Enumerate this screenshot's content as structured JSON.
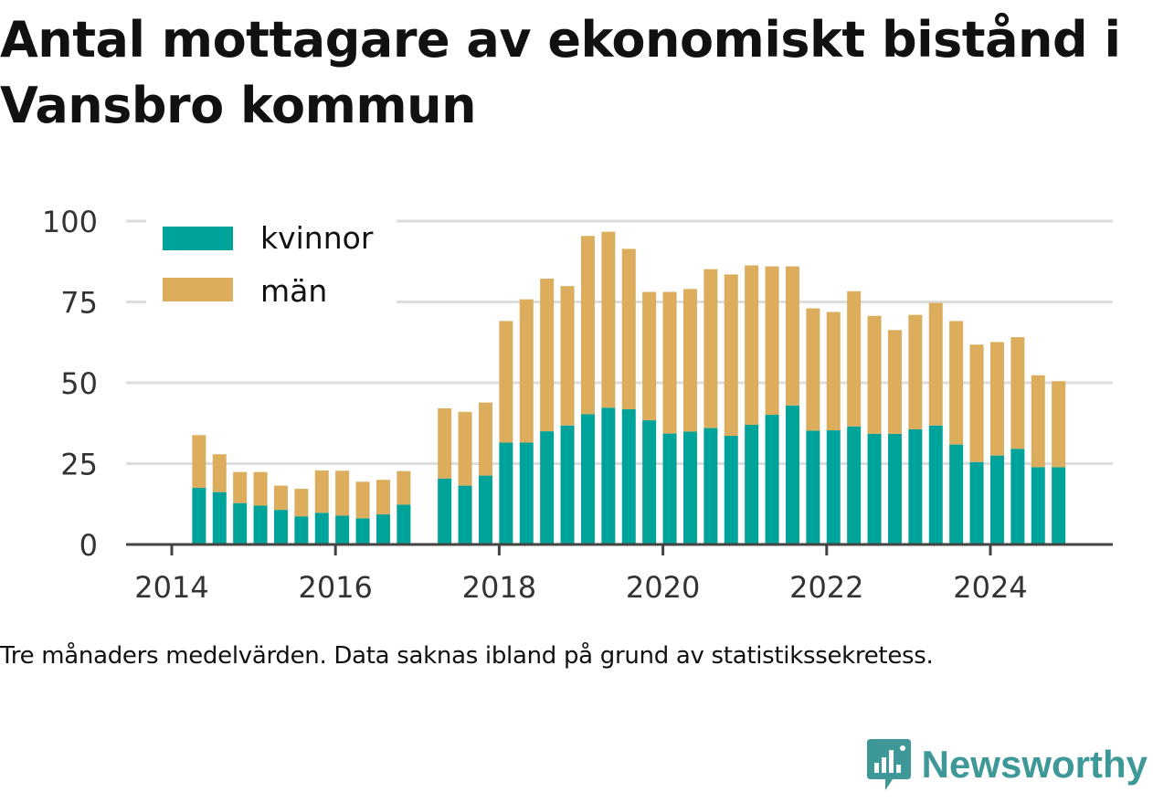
{
  "title": "Antal mottagare av ekonomiskt bistånd i Vansbro kommun",
  "caption": "Tre månaders medelvärden. Data saknas ibland på grund av statistikssekretess.",
  "brand": "Newsworthy",
  "colors": {
    "kvinnor": "#00a39a",
    "man": "#dbad5c",
    "grid": "#dddddd",
    "axis": "#444444",
    "brand": "#3e9898"
  },
  "chart_data": {
    "type": "bar",
    "stacked": true,
    "x_unit": "date (quarterly, three-month averages)",
    "x": [
      "2014-05",
      "2014-08",
      "2014-11",
      "2015-02",
      "2015-05",
      "2015-08",
      "2015-11",
      "2016-02",
      "2016-05",
      "2016-08",
      "2016-11",
      "2017-05",
      "2017-08",
      "2017-11",
      "2018-02",
      "2018-05",
      "2018-08",
      "2018-11",
      "2019-02",
      "2019-05",
      "2019-08",
      "2019-11",
      "2020-02",
      "2020-05",
      "2020-08",
      "2020-11",
      "2021-02",
      "2021-05",
      "2021-08",
      "2021-11",
      "2022-02",
      "2022-05",
      "2022-08",
      "2022-11",
      "2023-02",
      "2023-05",
      "2023-08",
      "2023-11",
      "2024-02",
      "2024-05",
      "2024-08",
      "2024-11"
    ],
    "series": [
      {
        "name": "kvinnor",
        "values": [
          17.5,
          16.2,
          12.8,
          12,
          10.7,
          8.7,
          9.8,
          8.9,
          8.1,
          9.3,
          12.3,
          20.4,
          18.2,
          21.3,
          31.5,
          31.5,
          35,
          36.8,
          40.3,
          42.3,
          41.8,
          38.4,
          34.3,
          34.9,
          36,
          33.6,
          37,
          40.1,
          43,
          35.2,
          35.3,
          36.5,
          34.2,
          34.2,
          35.6,
          36.8,
          30.9,
          25.5,
          27.5,
          29.6,
          23.9,
          23.9
        ]
      },
      {
        "name": "män",
        "values": [
          16.3,
          11.7,
          9.6,
          10.4,
          7.5,
          8.5,
          13.1,
          13.9,
          11.3,
          10.7,
          10.4,
          21.7,
          22.8,
          22.6,
          37.6,
          44.3,
          47.2,
          43.1,
          55.1,
          54.4,
          49.6,
          39.7,
          43.8,
          44.1,
          49.1,
          49.9,
          49.3,
          45.9,
          43,
          37.8,
          36.6,
          41.8,
          36.5,
          32.1,
          35.4,
          37.9,
          38.2,
          36.3,
          35.1,
          34.5,
          28.4,
          26.6
        ]
      }
    ],
    "x_ticks": [
      "2014",
      "2016",
      "2018",
      "2020",
      "2022",
      "2024"
    ],
    "y_ticks": [
      0,
      25,
      50,
      75,
      100
    ],
    "ylim": [
      0,
      100
    ],
    "grid": true,
    "legend": "top-left"
  }
}
